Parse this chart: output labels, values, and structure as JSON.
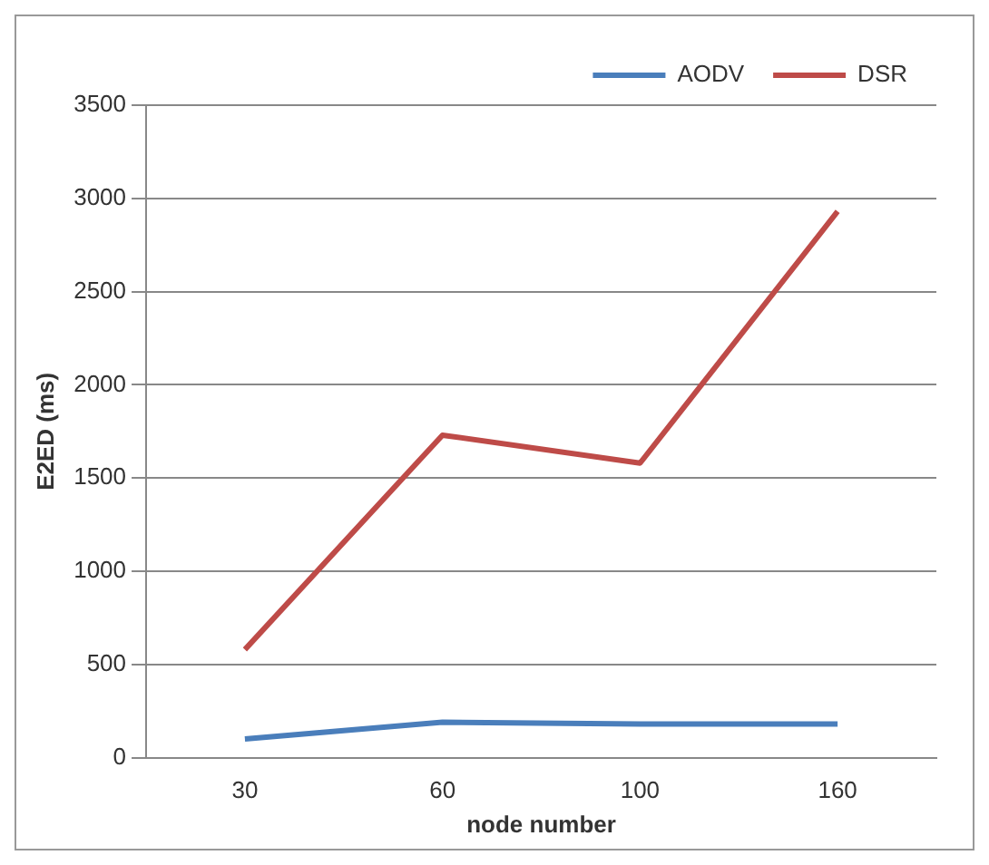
{
  "chart_data": {
    "type": "line",
    "xlabel": "node number",
    "ylabel": "E2ED (ms)",
    "categories": [
      "30",
      "60",
      "100",
      "160"
    ],
    "series": [
      {
        "name": "AODV",
        "color": "#4a7ebb",
        "values": [
          100,
          190,
          180,
          180
        ]
      },
      {
        "name": "DSR",
        "color": "#be4b48",
        "values": [
          580,
          1730,
          1580,
          2930
        ]
      }
    ],
    "ylim": [
      0,
      3500
    ],
    "yticks": [
      0,
      500,
      1000,
      1500,
      2000,
      2500,
      3000,
      3500
    ],
    "grid": "y",
    "legend": "top right",
    "marker": "none",
    "line_style": "solid"
  }
}
